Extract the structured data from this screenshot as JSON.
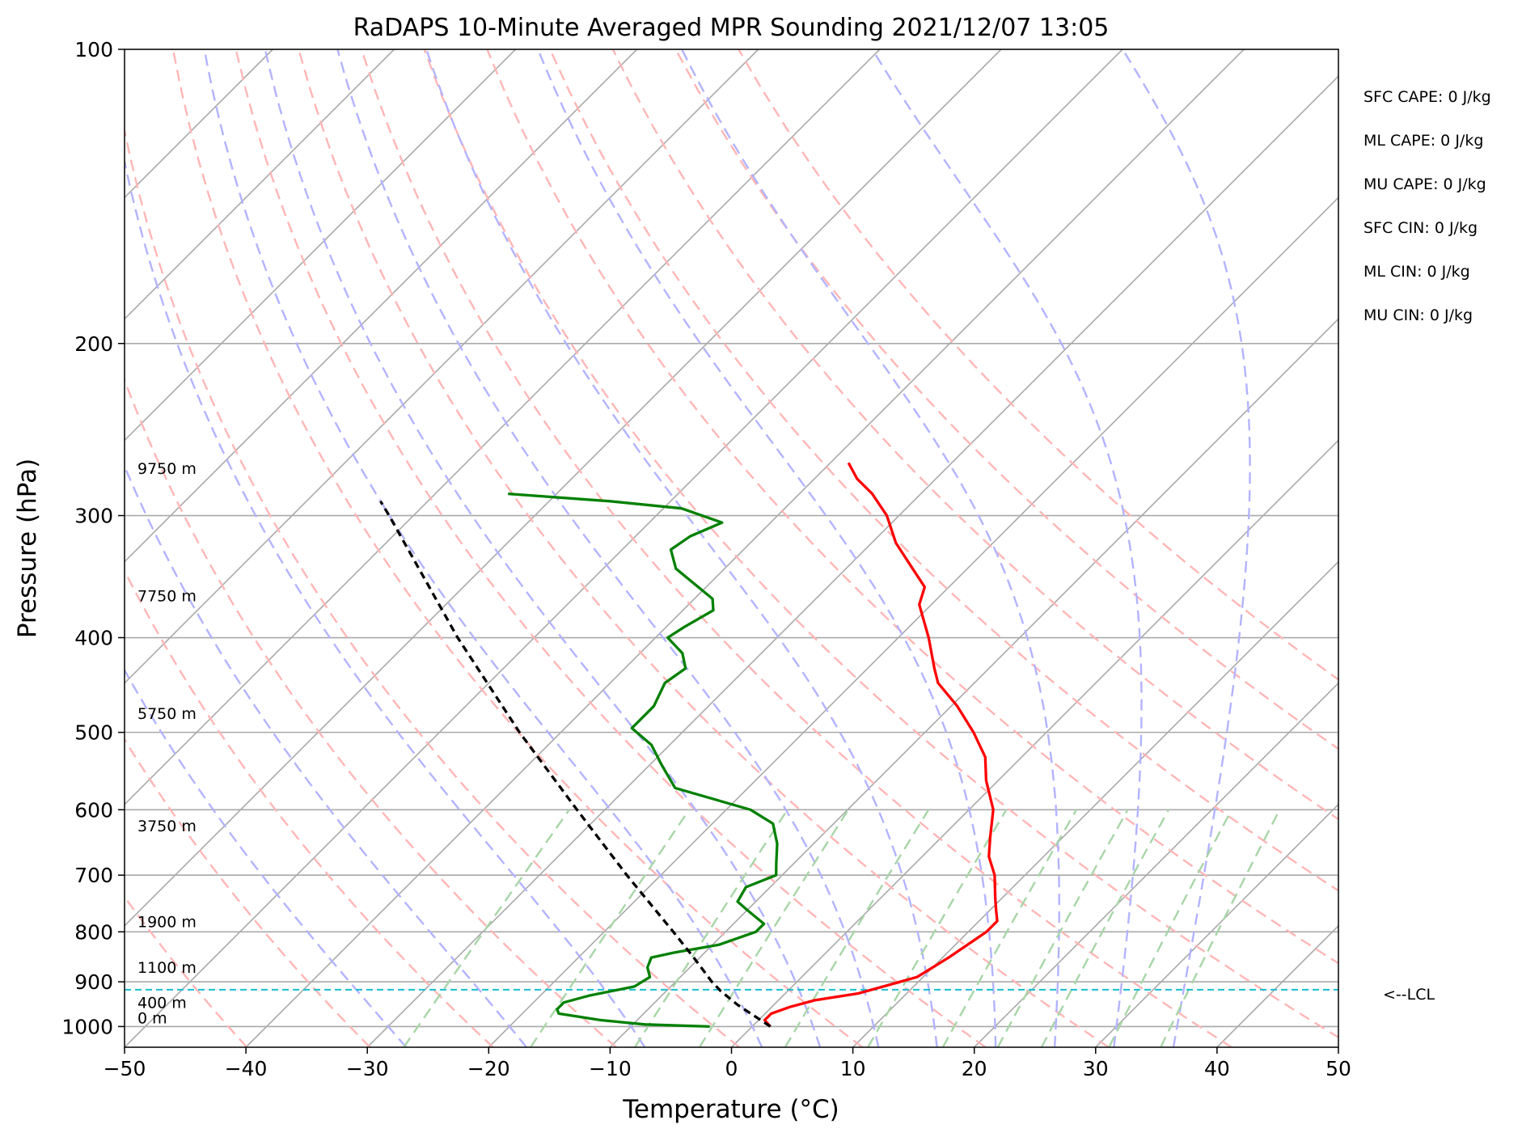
{
  "chart_data": {
    "type": "line",
    "subtype": "skew-T log-P sounding",
    "title": "RaDAPS 10-Minute Averaged MPR Sounding 2021/12/07 13:05",
    "xlabel": "Temperature (°C)",
    "ylabel": "Pressure (hPa)",
    "xlim": [
      -50,
      50
    ],
    "ylim": [
      1050,
      100
    ],
    "y_scale": "log",
    "grid": true,
    "x_ticks": [
      -50,
      -40,
      -30,
      -20,
      -10,
      0,
      10,
      20,
      30,
      40,
      50
    ],
    "x_tick_labels": [
      "−50",
      "−40",
      "−30",
      "−20",
      "−10",
      "0",
      "10",
      "20",
      "30",
      "40",
      "50"
    ],
    "y_ticks": [
      1000,
      900,
      800,
      700,
      600,
      500,
      400,
      300,
      200,
      100
    ],
    "y_tick_labels": [
      "1000",
      "900",
      "800",
      "700",
      "600",
      "500",
      "400",
      "300",
      "200",
      "100"
    ],
    "series": [
      {
        "key": "temperature",
        "color": "#ff0000",
        "points": [
          {
            "p": 1000,
            "t": 1.5
          },
          {
            "p": 985,
            "t": 0.5
          },
          {
            "p": 970,
            "t": 0.5
          },
          {
            "p": 955,
            "t": 1.5
          },
          {
            "p": 940,
            "t": 3.0
          },
          {
            "p": 925,
            "t": 6.0
          },
          {
            "p": 905,
            "t": 8.0
          },
          {
            "p": 890,
            "t": 9.5
          },
          {
            "p": 870,
            "t": 10.0
          },
          {
            "p": 850,
            "t": 10.5
          },
          {
            "p": 825,
            "t": 11.0
          },
          {
            "p": 800,
            "t": 11.5
          },
          {
            "p": 780,
            "t": 11.5
          },
          {
            "p": 760,
            "t": 10.5
          },
          {
            "p": 740,
            "t": 9.5
          },
          {
            "p": 700,
            "t": 7.5
          },
          {
            "p": 670,
            "t": 5.5
          },
          {
            "p": 640,
            "t": 4.0
          },
          {
            "p": 600,
            "t": 2.0
          },
          {
            "p": 560,
            "t": -1.0
          },
          {
            "p": 530,
            "t": -3.0
          },
          {
            "p": 500,
            "t": -6.0
          },
          {
            "p": 470,
            "t": -9.5
          },
          {
            "p": 445,
            "t": -13.0
          },
          {
            "p": 430,
            "t": -14.5
          },
          {
            "p": 400,
            "t": -17.5
          },
          {
            "p": 370,
            "t": -21.0
          },
          {
            "p": 355,
            "t": -22.0
          },
          {
            "p": 340,
            "t": -24.5
          },
          {
            "p": 320,
            "t": -28.0
          },
          {
            "p": 300,
            "t": -31.0
          },
          {
            "p": 285,
            "t": -34.0
          },
          {
            "p": 275,
            "t": -36.5
          },
          {
            "p": 265,
            "t": -38.5
          }
        ]
      },
      {
        "key": "dewpoint",
        "color": "#008000",
        "points": [
          {
            "p": 1000,
            "t": -3.5
          },
          {
            "p": 995,
            "t": -9.0
          },
          {
            "p": 985,
            "t": -13.0
          },
          {
            "p": 970,
            "t": -17.0
          },
          {
            "p": 960,
            "t": -17.5
          },
          {
            "p": 945,
            "t": -17.5
          },
          {
            "p": 930,
            "t": -16.0
          },
          {
            "p": 910,
            "t": -13.0
          },
          {
            "p": 890,
            "t": -12.5
          },
          {
            "p": 870,
            "t": -13.5
          },
          {
            "p": 850,
            "t": -14.0
          },
          {
            "p": 840,
            "t": -12.5
          },
          {
            "p": 825,
            "t": -9.5
          },
          {
            "p": 800,
            "t": -7.5
          },
          {
            "p": 785,
            "t": -7.5
          },
          {
            "p": 760,
            "t": -10.0
          },
          {
            "p": 745,
            "t": -11.5
          },
          {
            "p": 720,
            "t": -12.0
          },
          {
            "p": 700,
            "t": -10.5
          },
          {
            "p": 680,
            "t": -11.5
          },
          {
            "p": 650,
            "t": -13.0
          },
          {
            "p": 620,
            "t": -15.0
          },
          {
            "p": 600,
            "t": -18.0
          },
          {
            "p": 570,
            "t": -26.0
          },
          {
            "p": 540,
            "t": -29.0
          },
          {
            "p": 515,
            "t": -31.5
          },
          {
            "p": 495,
            "t": -34.5
          },
          {
            "p": 470,
            "t": -34.5
          },
          {
            "p": 445,
            "t": -35.5
          },
          {
            "p": 430,
            "t": -35.0
          },
          {
            "p": 415,
            "t": -36.5
          },
          {
            "p": 400,
            "t": -39.0
          },
          {
            "p": 390,
            "t": -38.5
          },
          {
            "p": 375,
            "t": -37.5
          },
          {
            "p": 365,
            "t": -38.5
          },
          {
            "p": 340,
            "t": -44.0
          },
          {
            "p": 325,
            "t": -46.0
          },
          {
            "p": 315,
            "t": -45.5
          },
          {
            "p": 305,
            "t": -44.0
          },
          {
            "p": 295,
            "t": -48.5
          },
          {
            "p": 290,
            "t": -55.0
          },
          {
            "p": 285,
            "t": -64.0
          }
        ]
      },
      {
        "key": "parcel",
        "color": "#000000",
        "points": [
          {
            "p": 1000,
            "t": 1.5
          },
          {
            "p": 950,
            "t": -3.0
          },
          {
            "p": 920,
            "t": -5.5
          },
          {
            "p": 900,
            "t": -7.0
          },
          {
            "p": 850,
            "t": -10.5
          },
          {
            "p": 800,
            "t": -14.3
          },
          {
            "p": 700,
            "t": -22.8
          },
          {
            "p": 600,
            "t": -32.3
          },
          {
            "p": 500,
            "t": -43.4
          },
          {
            "p": 400,
            "t": -56.3
          },
          {
            "p": 300,
            "t": -72.0
          },
          {
            "p": 290,
            "t": -73.9
          }
        ]
      }
    ],
    "lcl": {
      "p": 917,
      "label": "<--LCL",
      "color": "#17becf"
    },
    "height_labels": [
      {
        "p": 274,
        "text": "9750 m"
      },
      {
        "p": 370,
        "text": "7750 m"
      },
      {
        "p": 488,
        "text": "5750 m"
      },
      {
        "p": 636,
        "text": "3750 m"
      },
      {
        "p": 797,
        "text": "1900 m"
      },
      {
        "p": 888,
        "text": "1100 m"
      },
      {
        "p": 965,
        "text": "400 m"
      },
      {
        "p": 1000,
        "text": "0 m"
      }
    ],
    "background_lines": {
      "isotherms": {
        "color": "#a9a9a9",
        "values": [
          -120,
          -110,
          -100,
          -90,
          -80,
          -70,
          -60,
          -50,
          -40,
          -30,
          -20,
          -10,
          0,
          10,
          20,
          30,
          40,
          50
        ]
      },
      "dry_adiabats": {
        "color": "#ffb6b6",
        "theta_k": [
          230,
          240,
          250,
          260,
          270,
          280,
          290,
          300,
          310,
          320,
          330,
          340,
          350,
          360,
          370
        ]
      },
      "moist_adiabats": {
        "color": "#b3b3ff",
        "theta_start_c": [
          -30,
          -20,
          -10,
          0,
          5,
          10,
          15,
          20,
          25,
          30,
          35
        ]
      },
      "mixing_ratio": {
        "color": "#a8d5a8",
        "values_gkg": [
          0.4,
          1,
          2,
          3,
          5,
          8,
          12,
          16,
          20,
          28,
          36
        ]
      }
    }
  },
  "stats": [
    "SFC CAPE: 0 J/kg",
    "ML CAPE: 0 J/kg",
    "MU CAPE: 0 J/kg",
    "SFC CIN: 0 J/kg",
    "ML CIN: 0 J/kg",
    "MU CIN: 0 J/kg"
  ]
}
